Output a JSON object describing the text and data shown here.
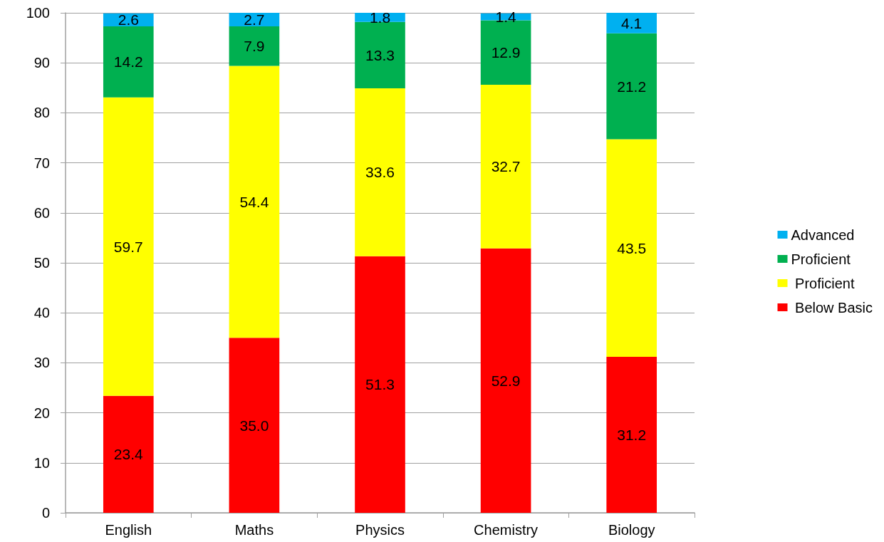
{
  "chart_data": {
    "type": "bar",
    "stacked": true,
    "categories": [
      "English",
      "Maths",
      "Physics",
      "Chemistry",
      "Biology"
    ],
    "series": [
      {
        "name": " Below Basic",
        "color": "#ff0000",
        "values": [
          23.4,
          35.0,
          51.3,
          52.9,
          31.2
        ],
        "value_labels": [
          "23.4",
          "35.0",
          "51.3",
          "52.9",
          "31.2"
        ]
      },
      {
        "name": " Proficient",
        "color": "#ffff00",
        "values": [
          59.7,
          54.4,
          33.6,
          32.7,
          43.5
        ],
        "value_labels": [
          "59.7",
          "54.4",
          "33.6",
          "32.7",
          "43.5"
        ]
      },
      {
        "name": "Proficient",
        "color": "#00b050",
        "values": [
          14.2,
          7.9,
          13.3,
          12.9,
          21.2
        ],
        "value_labels": [
          "14.2",
          "7.9",
          "13.3",
          "12.9",
          "21.2"
        ]
      },
      {
        "name": "Advanced",
        "color": "#00b0f0",
        "values": [
          2.6,
          2.7,
          1.8,
          1.4,
          4.1
        ],
        "value_labels": [
          "2.6",
          "2.7",
          "1.8",
          "1.4",
          "4.1"
        ]
      }
    ],
    "ylim": [
      0,
      100
    ],
    "yticks": [
      0,
      10,
      20,
      30,
      40,
      50,
      60,
      70,
      80,
      90,
      100
    ],
    "grid": "y",
    "legend": "right"
  }
}
